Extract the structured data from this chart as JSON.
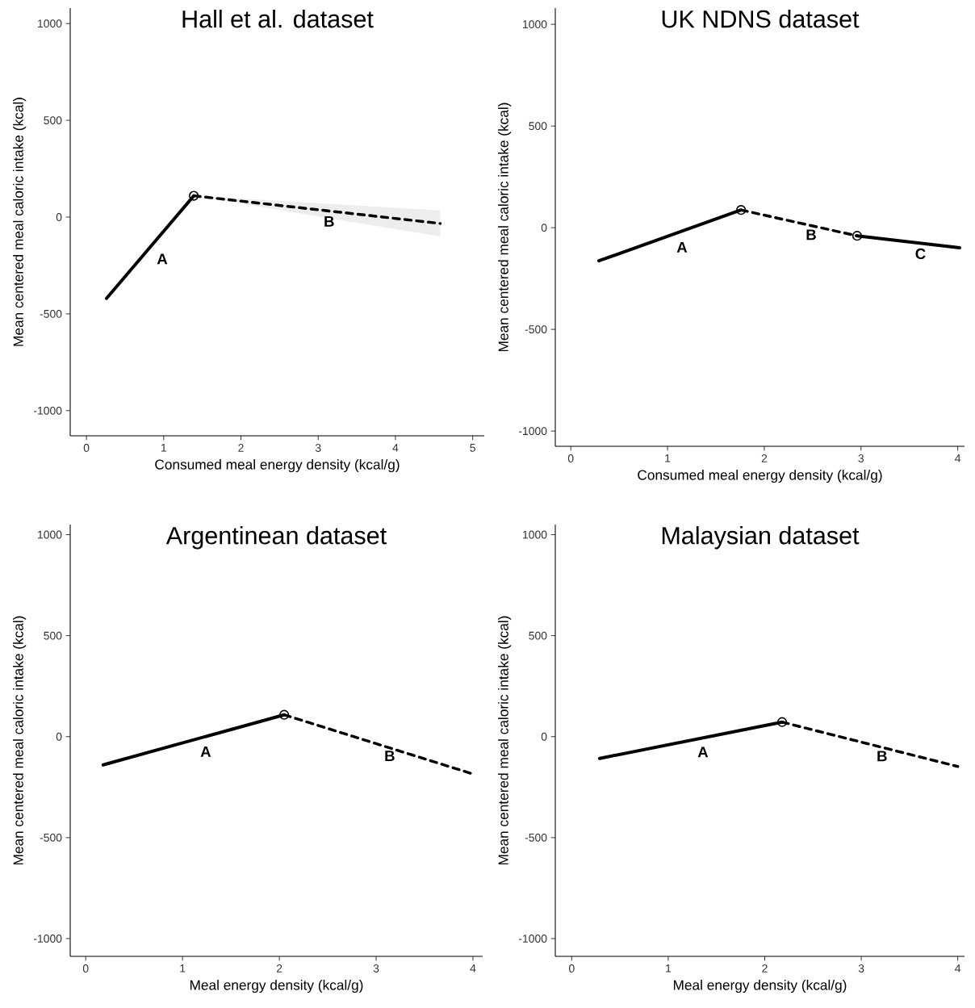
{
  "chart_data": [
    {
      "type": "line",
      "title": "Hall et al. dataset",
      "xlabel": "Consumed meal energy density (kcal/g)",
      "ylabel": "Mean centered meal caloric intake (kcal)",
      "xlim": [
        -0.21,
        5.15
      ],
      "ylim": [
        -1130,
        1080
      ],
      "xticks": [
        0,
        1,
        2,
        3,
        4,
        5
      ],
      "yticks": [
        -1000,
        -500,
        0,
        500,
        1000
      ],
      "series": [
        {
          "name": "A",
          "color": "#000000",
          "line_style": "solid",
          "x": [
            0.26,
            1.39
          ],
          "values": [
            -420,
            110
          ]
        },
        {
          "name": "B",
          "color": "#000000",
          "line_style": "dashed",
          "x": [
            1.39,
            4.58
          ],
          "values": [
            110,
            -33
          ],
          "lower": [
            110,
            -100
          ],
          "upper": [
            110,
            34
          ]
        },
        {
          "type": "scatter",
          "marker": "circle",
          "color": "#000000",
          "x": [
            1.39
          ],
          "values": [
            110
          ]
        }
      ]
    },
    {
      "type": "line",
      "title": "UK NDNS dataset",
      "xlabel": "Consumed meal energy density (kcal/g)",
      "ylabel": "Mean centered meal caloric intake (kcal)",
      "xlim": [
        -0.16,
        4.07
      ],
      "ylim": [
        -1075,
        1080
      ],
      "xticks": [
        0,
        1,
        2,
        3,
        4
      ],
      "yticks": [
        -1000,
        -500,
        0,
        500,
        1000
      ],
      "series": [
        {
          "name": "A",
          "color": "#000000",
          "line_style": "solid",
          "x": [
            0.29,
            1.76
          ],
          "values": [
            -163,
            87
          ]
        },
        {
          "name": "B",
          "color": "#000000",
          "line_style": "dashed",
          "x": [
            1.76,
            2.96
          ],
          "values": [
            87,
            -40
          ]
        },
        {
          "name": "C",
          "color": "#000000",
          "line_style": "solid",
          "x": [
            2.96,
            4.02
          ],
          "values": [
            -40,
            -99
          ]
        },
        {
          "type": "scatter",
          "marker": "circle",
          "color": "#000000",
          "x": [
            1.76,
            2.96
          ],
          "values": [
            87,
            -40
          ]
        }
      ]
    },
    {
      "type": "line",
      "title": "Argentinean dataset",
      "xlabel": "Meal energy density (kcal/g)",
      "ylabel": "Mean centered meal caloric intake (kcal)",
      "xlim": [
        -0.16,
        4.1
      ],
      "ylim": [
        -1088,
        1050
      ],
      "xticks": [
        0,
        1,
        2,
        3,
        4
      ],
      "yticks": [
        -1000,
        -500,
        0,
        500,
        1000
      ],
      "series": [
        {
          "name": "A",
          "color": "#000000",
          "line_style": "solid",
          "x": [
            0.18,
            2.05
          ],
          "values": [
            -140,
            108
          ]
        },
        {
          "name": "B",
          "color": "#000000",
          "line_style": "dashed",
          "x": [
            2.05,
            3.98
          ],
          "values": [
            108,
            -182
          ]
        },
        {
          "type": "scatter",
          "marker": "circle",
          "color": "#000000",
          "x": [
            2.05
          ],
          "values": [
            108
          ]
        }
      ]
    },
    {
      "type": "line",
      "title": "Malaysian dataset",
      "xlabel": "Meal energy density (kcal/g)",
      "ylabel": "Mean centered meal caloric intake (kcal)",
      "xlim": [
        -0.17,
        4.07
      ],
      "ylim": [
        -1088,
        1050
      ],
      "xticks": [
        0,
        1,
        2,
        3,
        4
      ],
      "yticks": [
        -1000,
        -500,
        0,
        500,
        1000
      ],
      "series": [
        {
          "name": "A",
          "color": "#000000",
          "line_style": "solid",
          "x": [
            0.29,
            2.18
          ],
          "values": [
            -108,
            72
          ]
        },
        {
          "name": "B",
          "color": "#000000",
          "line_style": "dashed",
          "x": [
            2.18,
            4.0
          ],
          "values": [
            72,
            -148
          ]
        },
        {
          "type": "scatter",
          "marker": "circle",
          "color": "#000000",
          "x": [
            2.18
          ],
          "values": [
            72
          ]
        }
      ]
    }
  ]
}
